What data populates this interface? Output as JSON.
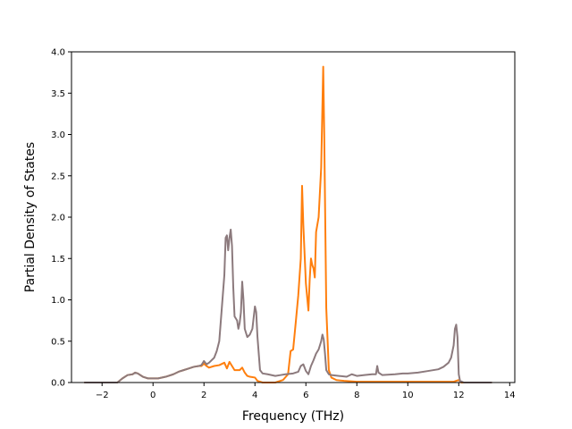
{
  "chart_data": {
    "type": "line",
    "title": "",
    "xlabel": "Frequency (THz)",
    "ylabel": "Partial Density of States",
    "xlim": [
      -3.2,
      14.2
    ],
    "ylim": [
      0.0,
      4.0
    ],
    "xticks": [
      -2,
      0,
      2,
      4,
      6,
      8,
      10,
      12,
      14
    ],
    "yticks": [
      0.0,
      0.5,
      1.0,
      1.5,
      2.0,
      2.5,
      3.0,
      3.5,
      4.0
    ],
    "xtick_labels": [
      "−2",
      "0",
      "2",
      "4",
      "6",
      "8",
      "10",
      "12",
      "14"
    ],
    "ytick_labels": [
      "0.0",
      "0.5",
      "1.0",
      "1.5",
      "2.0",
      "2.5",
      "3.0",
      "3.5",
      "4.0"
    ],
    "grid": false,
    "legend": "none",
    "series": [
      {
        "color": "#ff7f0e",
        "points": [
          [
            -2.7,
            0.0
          ],
          [
            -1.4,
            0.0
          ],
          [
            -1.2,
            0.05
          ],
          [
            -1.0,
            0.09
          ],
          [
            -0.8,
            0.1
          ],
          [
            -0.7,
            0.12
          ],
          [
            -0.6,
            0.11
          ],
          [
            -0.4,
            0.07
          ],
          [
            -0.2,
            0.05
          ],
          [
            0.0,
            0.05
          ],
          [
            0.2,
            0.05
          ],
          [
            0.5,
            0.07
          ],
          [
            0.8,
            0.1
          ],
          [
            1.0,
            0.13
          ],
          [
            1.2,
            0.15
          ],
          [
            1.4,
            0.17
          ],
          [
            1.6,
            0.19
          ],
          [
            1.8,
            0.2
          ],
          [
            1.9,
            0.2
          ],
          [
            2.0,
            0.23
          ],
          [
            2.1,
            0.2
          ],
          [
            2.2,
            0.18
          ],
          [
            2.4,
            0.2
          ],
          [
            2.6,
            0.21
          ],
          [
            2.8,
            0.24
          ],
          [
            2.9,
            0.17
          ],
          [
            3.0,
            0.25
          ],
          [
            3.1,
            0.2
          ],
          [
            3.2,
            0.15
          ],
          [
            3.4,
            0.15
          ],
          [
            3.5,
            0.18
          ],
          [
            3.6,
            0.12
          ],
          [
            3.7,
            0.08
          ],
          [
            3.8,
            0.07
          ],
          [
            4.0,
            0.06
          ],
          [
            4.1,
            0.02
          ],
          [
            4.3,
            0.0
          ],
          [
            4.8,
            0.0
          ],
          [
            5.1,
            0.03
          ],
          [
            5.3,
            0.1
          ],
          [
            5.4,
            0.38
          ],
          [
            5.5,
            0.4
          ],
          [
            5.6,
            0.72
          ],
          [
            5.7,
            1.05
          ],
          [
            5.8,
            1.5
          ],
          [
            5.85,
            2.38
          ],
          [
            5.9,
            1.9
          ],
          [
            6.0,
            1.2
          ],
          [
            6.1,
            0.87
          ],
          [
            6.15,
            1.25
          ],
          [
            6.2,
            1.5
          ],
          [
            6.25,
            1.42
          ],
          [
            6.3,
            1.38
          ],
          [
            6.35,
            1.27
          ],
          [
            6.4,
            1.82
          ],
          [
            6.5,
            2.0
          ],
          [
            6.6,
            2.6
          ],
          [
            6.68,
            3.82
          ],
          [
            6.72,
            3.0
          ],
          [
            6.8,
            0.9
          ],
          [
            6.9,
            0.15
          ],
          [
            7.0,
            0.06
          ],
          [
            7.2,
            0.03
          ],
          [
            7.5,
            0.02
          ],
          [
            8.0,
            0.01
          ],
          [
            9.0,
            0.01
          ],
          [
            10.0,
            0.01
          ],
          [
            11.0,
            0.01
          ],
          [
            11.8,
            0.01
          ],
          [
            12.0,
            0.03
          ],
          [
            12.1,
            0.0
          ],
          [
            13.3,
            0.0
          ]
        ]
      },
      {
        "color": "#8c7a7d",
        "points": [
          [
            -2.7,
            0.0
          ],
          [
            -1.4,
            0.0
          ],
          [
            -1.2,
            0.05
          ],
          [
            -1.0,
            0.09
          ],
          [
            -0.8,
            0.1
          ],
          [
            -0.7,
            0.12
          ],
          [
            -0.6,
            0.11
          ],
          [
            -0.4,
            0.07
          ],
          [
            -0.2,
            0.05
          ],
          [
            0.0,
            0.05
          ],
          [
            0.2,
            0.05
          ],
          [
            0.5,
            0.07
          ],
          [
            0.8,
            0.1
          ],
          [
            1.0,
            0.13
          ],
          [
            1.2,
            0.15
          ],
          [
            1.4,
            0.17
          ],
          [
            1.6,
            0.19
          ],
          [
            1.8,
            0.2
          ],
          [
            1.9,
            0.21
          ],
          [
            2.0,
            0.26
          ],
          [
            2.1,
            0.22
          ],
          [
            2.2,
            0.24
          ],
          [
            2.4,
            0.3
          ],
          [
            2.5,
            0.38
          ],
          [
            2.6,
            0.5
          ],
          [
            2.7,
            0.9
          ],
          [
            2.8,
            1.3
          ],
          [
            2.85,
            1.75
          ],
          [
            2.9,
            1.78
          ],
          [
            2.95,
            1.6
          ],
          [
            3.0,
            1.75
          ],
          [
            3.05,
            1.85
          ],
          [
            3.1,
            1.65
          ],
          [
            3.15,
            1.15
          ],
          [
            3.2,
            0.8
          ],
          [
            3.3,
            0.75
          ],
          [
            3.35,
            0.65
          ],
          [
            3.4,
            0.72
          ],
          [
            3.45,
            0.85
          ],
          [
            3.5,
            1.22
          ],
          [
            3.55,
            1.0
          ],
          [
            3.6,
            0.65
          ],
          [
            3.7,
            0.55
          ],
          [
            3.8,
            0.58
          ],
          [
            3.9,
            0.65
          ],
          [
            4.0,
            0.92
          ],
          [
            4.05,
            0.85
          ],
          [
            4.1,
            0.55
          ],
          [
            4.2,
            0.15
          ],
          [
            4.3,
            0.11
          ],
          [
            4.5,
            0.1
          ],
          [
            4.8,
            0.08
          ],
          [
            5.0,
            0.09
          ],
          [
            5.2,
            0.1
          ],
          [
            5.5,
            0.11
          ],
          [
            5.7,
            0.13
          ],
          [
            5.8,
            0.2
          ],
          [
            5.9,
            0.22
          ],
          [
            6.0,
            0.14
          ],
          [
            6.1,
            0.1
          ],
          [
            6.2,
            0.2
          ],
          [
            6.3,
            0.27
          ],
          [
            6.4,
            0.35
          ],
          [
            6.5,
            0.4
          ],
          [
            6.6,
            0.5
          ],
          [
            6.65,
            0.58
          ],
          [
            6.7,
            0.52
          ],
          [
            6.75,
            0.35
          ],
          [
            6.8,
            0.15
          ],
          [
            6.9,
            0.1
          ],
          [
            7.0,
            0.09
          ],
          [
            7.3,
            0.08
          ],
          [
            7.6,
            0.07
          ],
          [
            7.8,
            0.1
          ],
          [
            8.0,
            0.08
          ],
          [
            8.3,
            0.09
          ],
          [
            8.6,
            0.1
          ],
          [
            8.75,
            0.1
          ],
          [
            8.8,
            0.2
          ],
          [
            8.85,
            0.12
          ],
          [
            9.0,
            0.09
          ],
          [
            9.5,
            0.1
          ],
          [
            9.8,
            0.11
          ],
          [
            10.0,
            0.11
          ],
          [
            10.4,
            0.12
          ],
          [
            10.8,
            0.14
          ],
          [
            11.2,
            0.16
          ],
          [
            11.4,
            0.19
          ],
          [
            11.6,
            0.24
          ],
          [
            11.7,
            0.3
          ],
          [
            11.8,
            0.45
          ],
          [
            11.85,
            0.65
          ],
          [
            11.9,
            0.7
          ],
          [
            11.95,
            0.55
          ],
          [
            12.0,
            0.1
          ],
          [
            12.05,
            0.02
          ],
          [
            12.2,
            0.0
          ],
          [
            13.3,
            0.0
          ]
        ]
      }
    ]
  }
}
